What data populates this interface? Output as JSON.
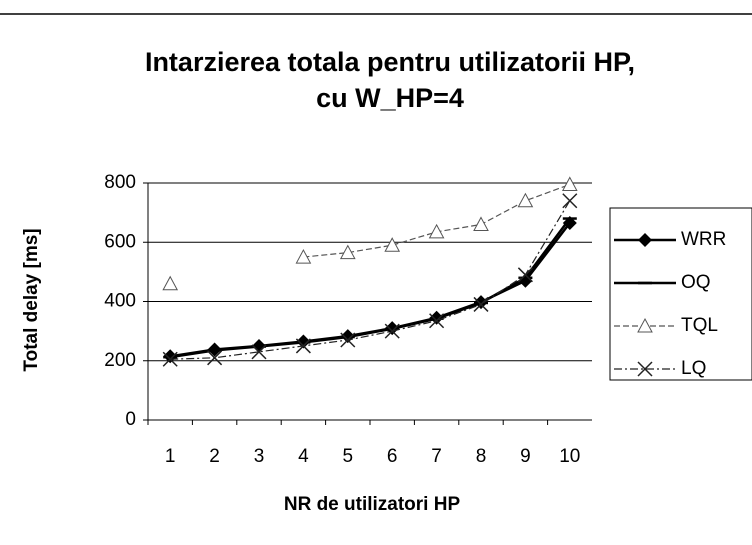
{
  "chart_data": {
    "type": "line",
    "title": [
      "Intarzierea totala pentru utilizatorii HP,",
      "cu W_HP=4"
    ],
    "x_label": "NR de utilizatori HP",
    "y_label": "Total delay [ms]",
    "categories": [
      "1",
      "2",
      "3",
      "4",
      "5",
      "6",
      "7",
      "8",
      "9",
      "10"
    ],
    "series": [
      {
        "name": "WRR",
        "color": "#000000",
        "marker": "diamond",
        "dash": "solid",
        "values": [
          215,
          238,
          250,
          265,
          283,
          310,
          345,
          398,
          470,
          665
        ]
      },
      {
        "name": "OQ",
        "color": "#000000",
        "marker": "dash",
        "dash": "solid",
        "values": [
          212,
          235,
          248,
          262,
          280,
          308,
          342,
          395,
          480,
          680
        ]
      },
      {
        "name": "TQL",
        "color": "#555555",
        "marker": "triangle",
        "dash": "dashed",
        "values": [
          460,
          null,
          null,
          550,
          565,
          590,
          635,
          660,
          740,
          795
        ]
      },
      {
        "name": "LQ",
        "color": "#222222",
        "marker": "x",
        "dash": "dashdot",
        "values": [
          205,
          210,
          230,
          250,
          270,
          300,
          335,
          390,
          490,
          740
        ]
      }
    ],
    "ylim": [
      0,
      800
    ],
    "yticks": [
      0,
      200,
      400,
      600,
      800
    ],
    "grid": true,
    "legend": "right"
  }
}
